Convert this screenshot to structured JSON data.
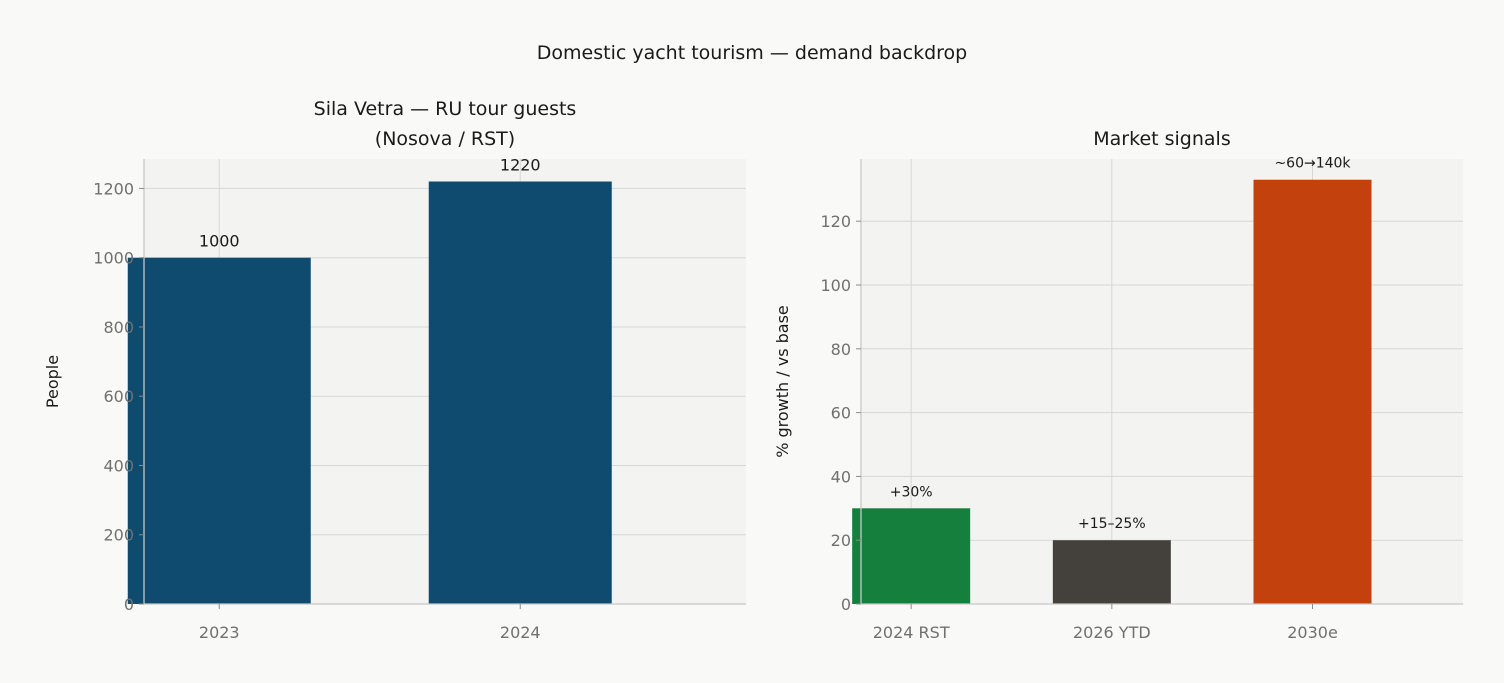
{
  "figure": {
    "title": "Domestic yacht tourism — demand backdrop"
  },
  "chart_data": [
    {
      "type": "bar",
      "title_lines": [
        "Sila Vetra — RU tour guests",
        "(Nosova / RST)"
      ],
      "xlabel": "",
      "ylabel": "People",
      "categories": [
        "2023",
        "2024"
      ],
      "values": [
        1000,
        1220
      ],
      "data_labels": [
        "1000",
        "1220"
      ],
      "ylim": [
        0,
        1285
      ],
      "yticks": [
        0,
        200,
        400,
        600,
        800,
        1000,
        1200
      ],
      "grid": true,
      "colors": [
        "#0e4b6e",
        "#0e4b6e"
      ]
    },
    {
      "type": "bar",
      "title_lines": [
        "Market signals"
      ],
      "xlabel": "",
      "ylabel": "% growth / vs base",
      "categories": [
        "2024 RST",
        "2026 YTD",
        "2030e"
      ],
      "values": [
        30,
        20,
        133
      ],
      "data_labels": [
        "+30%",
        "+15–25%",
        "~60→140k"
      ],
      "ylim": [
        0,
        139.5
      ],
      "yticks": [
        0,
        20,
        40,
        60,
        80,
        100,
        120
      ],
      "grid": true,
      "colors": [
        "#15803d",
        "#44413c",
        "#c2410c"
      ]
    }
  ],
  "style": {
    "background": "#f9f9f7",
    "plot_background": "#f3f3f2",
    "grid_color": "#d7d7d7",
    "spine_color": "#c8c8c8"
  }
}
